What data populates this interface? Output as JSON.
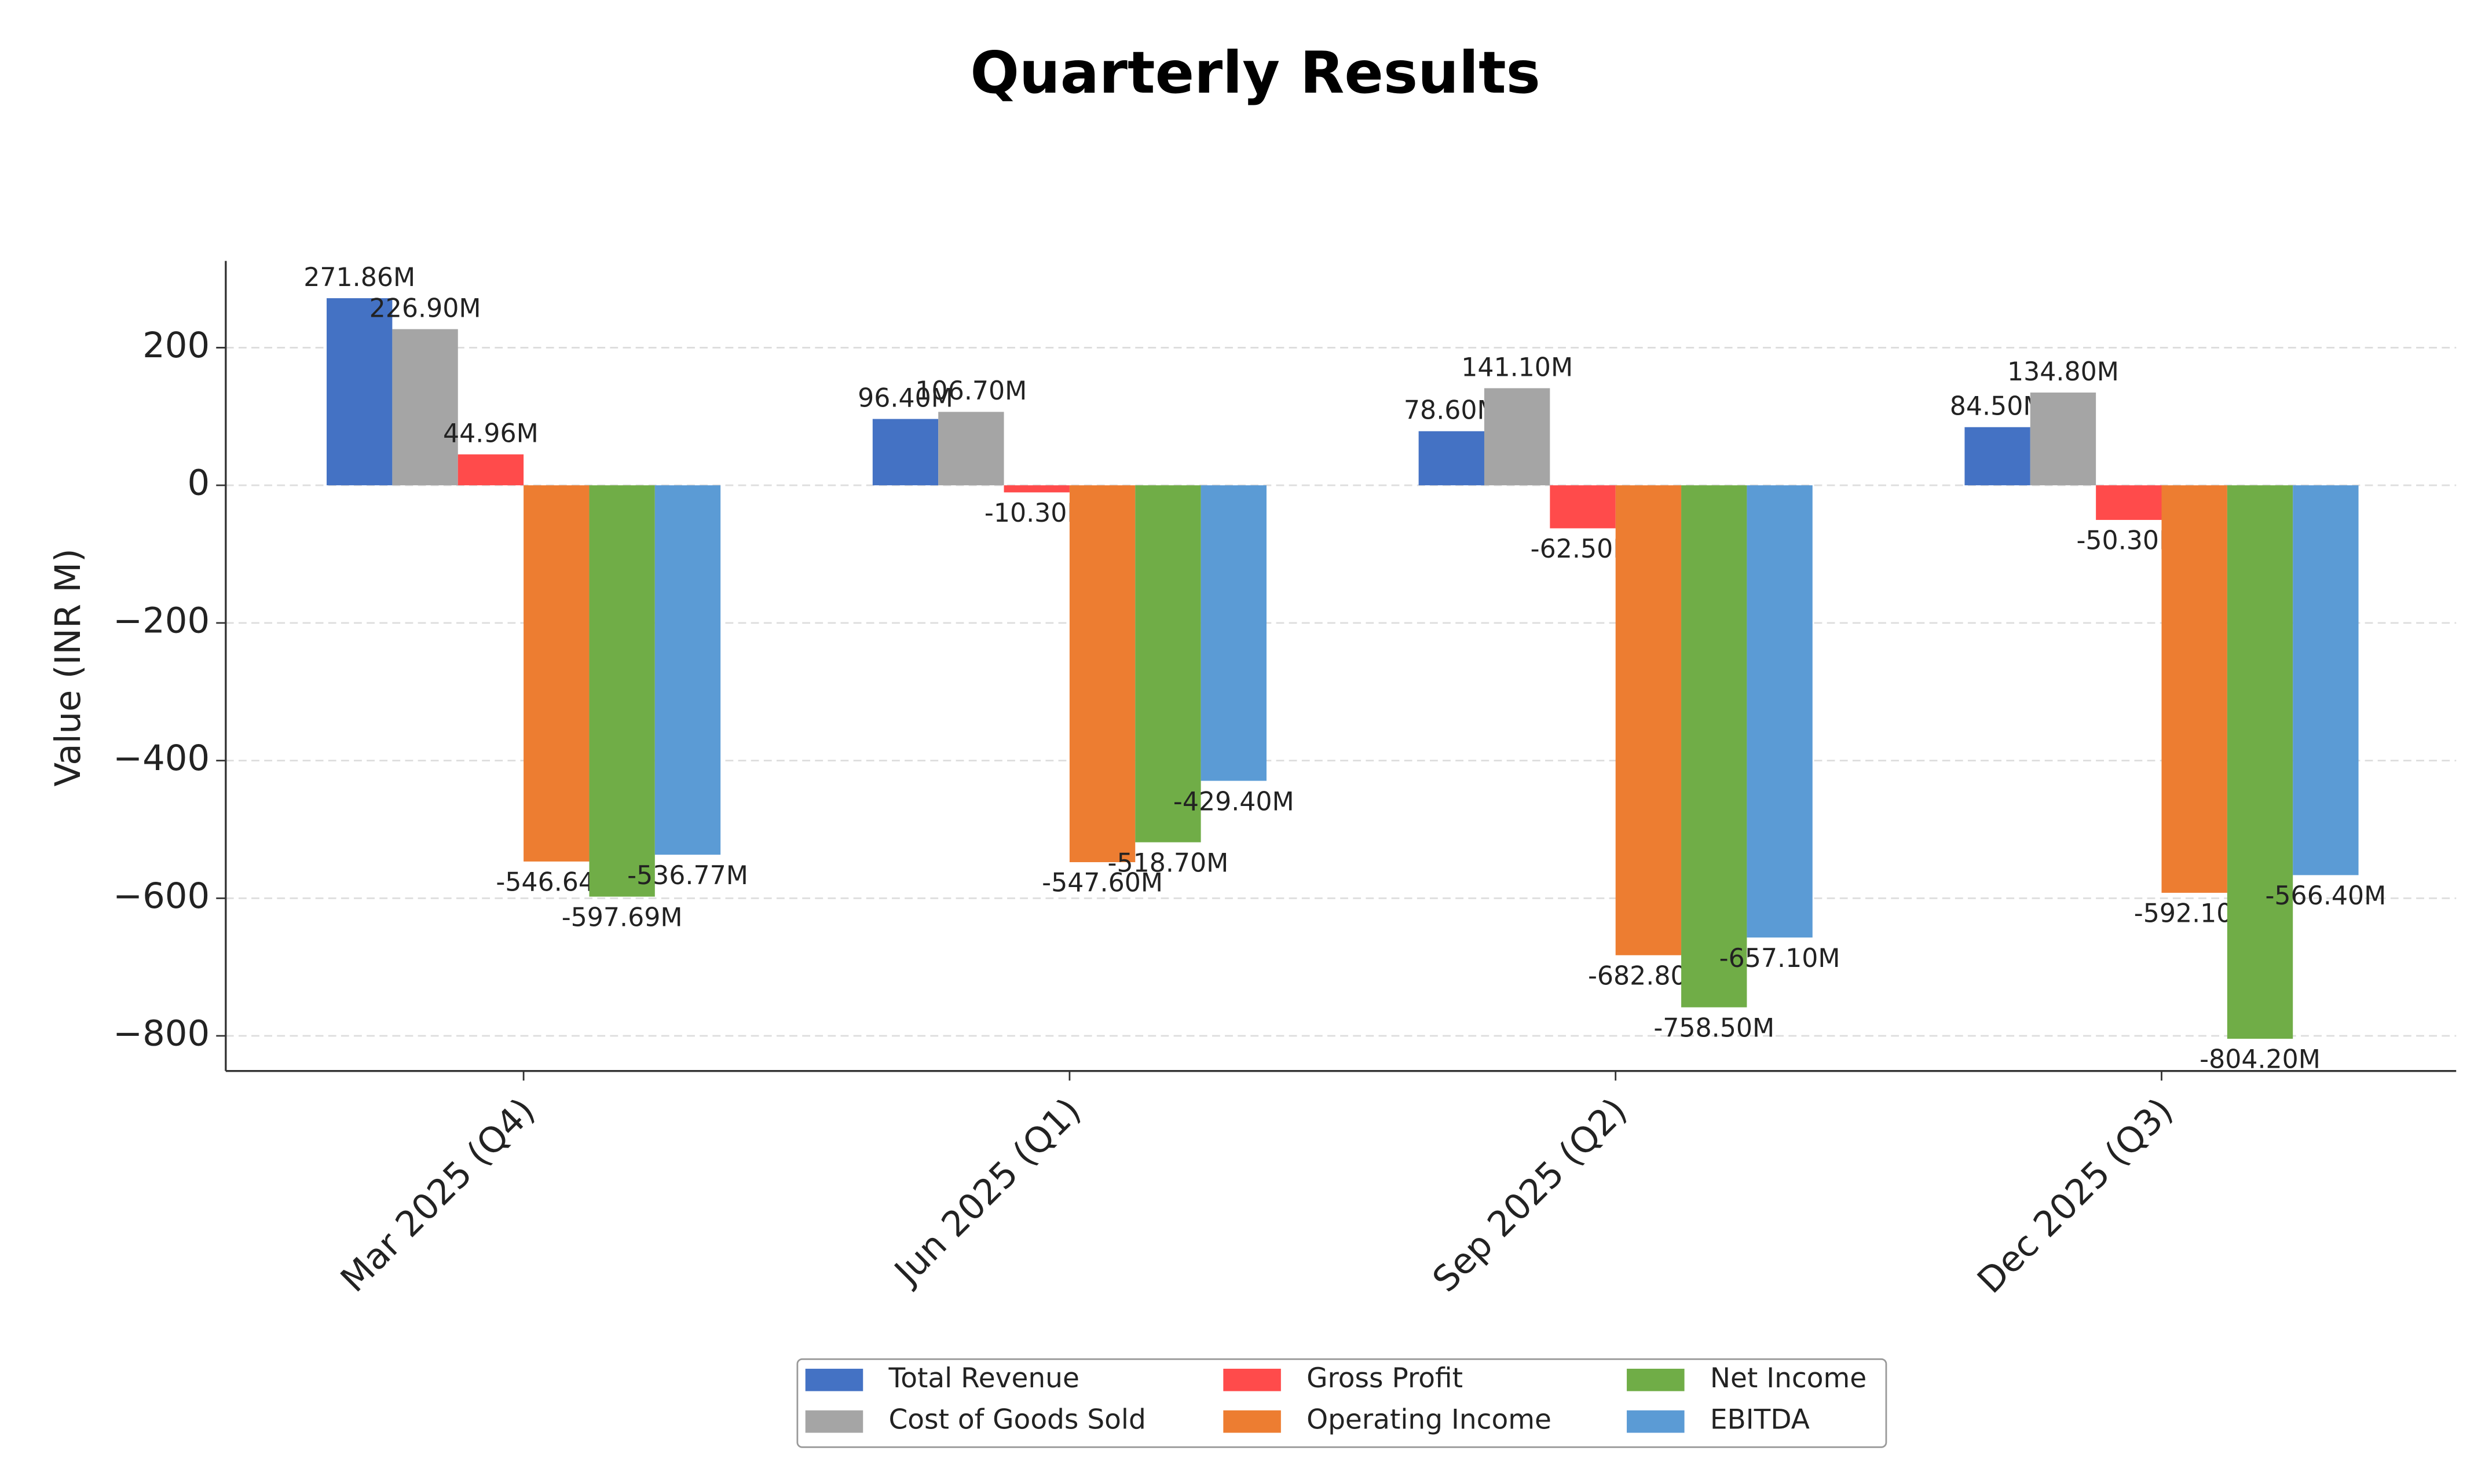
{
  "chart_data": {
    "type": "bar",
    "title": "Quarterly Results",
    "y_label": "Value (INR M)",
    "categories": [
      "Mar 2025 (Q4)",
      "Jun 2025 (Q1)",
      "Sep 2025 (Q2)",
      "Dec 2025 (Q3)"
    ],
    "series": [
      {
        "name": "Total Revenue",
        "color": "#4472c4",
        "values": [
          271.86,
          96.4,
          78.6,
          84.5
        ],
        "value_labels": [
          "271.86M",
          "96.40M",
          "78.60M",
          "84.50M"
        ]
      },
      {
        "name": "Cost of Goods Sold",
        "color": "#a5a5a5",
        "values": [
          226.9,
          106.7,
          141.1,
          134.8
        ],
        "value_labels": [
          "226.90M",
          "106.70M",
          "141.10M",
          "134.80M"
        ]
      },
      {
        "name": "Gross Profit",
        "color": "#ff4b4b",
        "values": [
          44.96,
          -10.3,
          -62.5,
          -50.3
        ],
        "value_labels": [
          "44.96M",
          "-10.30M",
          "-62.50M",
          "-50.30M"
        ]
      },
      {
        "name": "Operating Income",
        "color": "#ed7d31",
        "values": [
          -546.64,
          -547.6,
          -682.8,
          -592.1
        ],
        "value_labels": [
          "-546.64M",
          "-547.60M",
          "-682.80M",
          "-592.10M"
        ]
      },
      {
        "name": "Net Income",
        "color": "#70ad47",
        "values": [
          -597.69,
          -518.7,
          -758.5,
          -804.2
        ],
        "value_labels": [
          "-597.69M",
          "-518.70M",
          "-758.50M",
          "-804.20M"
        ]
      },
      {
        "name": "EBITDA",
        "color": "#5b9bd5",
        "values": [
          -536.77,
          -429.4,
          -657.1,
          -566.4
        ],
        "value_labels": [
          "-536.77M",
          "-429.40M",
          "-657.10M",
          "-566.40M"
        ]
      }
    ],
    "ylim": [
      -851,
      326
    ],
    "yticks": [
      {
        "value": -800,
        "label": "−800"
      },
      {
        "value": -600,
        "label": "−600"
      },
      {
        "value": -400,
        "label": "−400"
      },
      {
        "value": -200,
        "label": "−200"
      },
      0,
      200
    ],
    "grid": true,
    "legend": "bottom"
  }
}
